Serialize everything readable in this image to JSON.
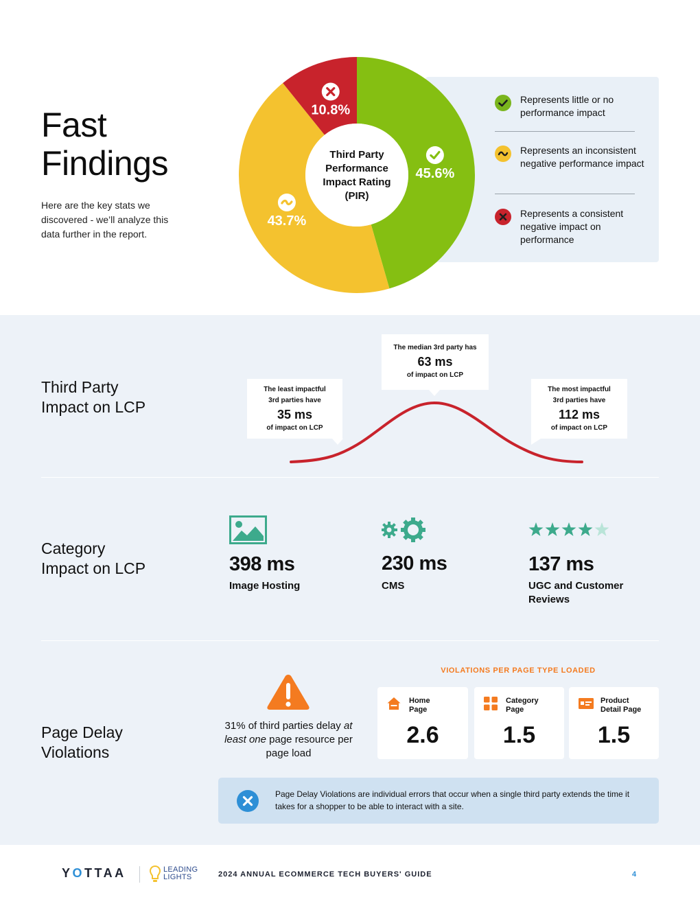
{
  "header": {
    "title_line1": "Fast",
    "title_line2": "Findings",
    "description": "Here are the key stats we discovered - we’ll analyze this data further in the report."
  },
  "chart_data": {
    "type": "pie",
    "title": "Third Party Performance Impact Rating (PIR)",
    "center_label": [
      "Third Party",
      "Performance",
      "Impact Rating",
      "(PIR)"
    ],
    "slices": [
      {
        "label": "45.6%",
        "value": 45.6,
        "color": "#85bf12",
        "icon": "check-icon"
      },
      {
        "label": "43.7%",
        "value": 43.7,
        "color": "#f4c22f",
        "icon": "tilde-icon"
      },
      {
        "label": "10.8%",
        "value": 10.8,
        "color": "#c8232c",
        "icon": "x-icon"
      }
    ]
  },
  "legend": {
    "items": [
      {
        "text": "Represents little or no performance impact",
        "color": "#7ab51d",
        "icon": "check-icon"
      },
      {
        "text": "Represents an inconsistent negative performance impact",
        "color": "#f4c22f",
        "icon": "tilde-icon"
      },
      {
        "text": "Represents a consistent negative impact on performance",
        "color": "#c8232c",
        "icon": "x-icon"
      }
    ]
  },
  "lcp_section": {
    "title_line1": "Third Party",
    "title_line2": "Impact on LCP",
    "curve_color": "#c8232c",
    "callouts": {
      "least": {
        "line1": "The least impactful",
        "line2": "3rd parties have",
        "value": "35 ms",
        "suffix": "of impact on LCP"
      },
      "median": {
        "line1": "The median 3rd party has",
        "value": "63 ms",
        "suffix": "of impact on LCP"
      },
      "most": {
        "line1": "The most impactful",
        "line2": "3rd parties have",
        "value": "112 ms",
        "suffix": "of impact on LCP"
      }
    }
  },
  "category_section": {
    "title_line1": "Category",
    "title_line2": "Impact on LCP",
    "accent": "#3daa8c",
    "stats": [
      {
        "value": "398 ms",
        "label": "Image Hosting",
        "icon": "image-icon"
      },
      {
        "value": "230 ms",
        "label": "CMS",
        "icon": "gears-icon"
      },
      {
        "value": "137 ms",
        "label": "UGC and Customer Reviews",
        "icon": "stars-icon"
      }
    ]
  },
  "violations_section": {
    "title_line1": "Page Delay",
    "title_line2": "Violations",
    "warning_pre": "31% of third parties delay ",
    "warning_em": "at least one",
    "warning_post": " page resource per page load",
    "header": "VIOLATIONS PER PAGE TYPE LOADED",
    "accent": "#f47b20",
    "cards": [
      {
        "line1": "Home",
        "line2": "Page",
        "value": "2.6",
        "icon": "home-icon"
      },
      {
        "line1": "Category",
        "line2": "Page",
        "value": "1.5",
        "icon": "grid-icon"
      },
      {
        "line1": "Product",
        "line2": "Detail Page",
        "value": "1.5",
        "icon": "product-icon"
      }
    ],
    "note": "Page Delay Violations are individual errors that occur when a single third party extends the time it takes for a shopper to be able to interact with a site."
  },
  "footer": {
    "brand_pre": "Y",
    "brand_o": "O",
    "brand_post": "TTAA",
    "partner_line1": "LEADING",
    "partner_line2": "LIGHTS",
    "guide": "2024 ANNUAL ECOMMERCE TECH BUYERS' GUIDE",
    "page": "4"
  }
}
